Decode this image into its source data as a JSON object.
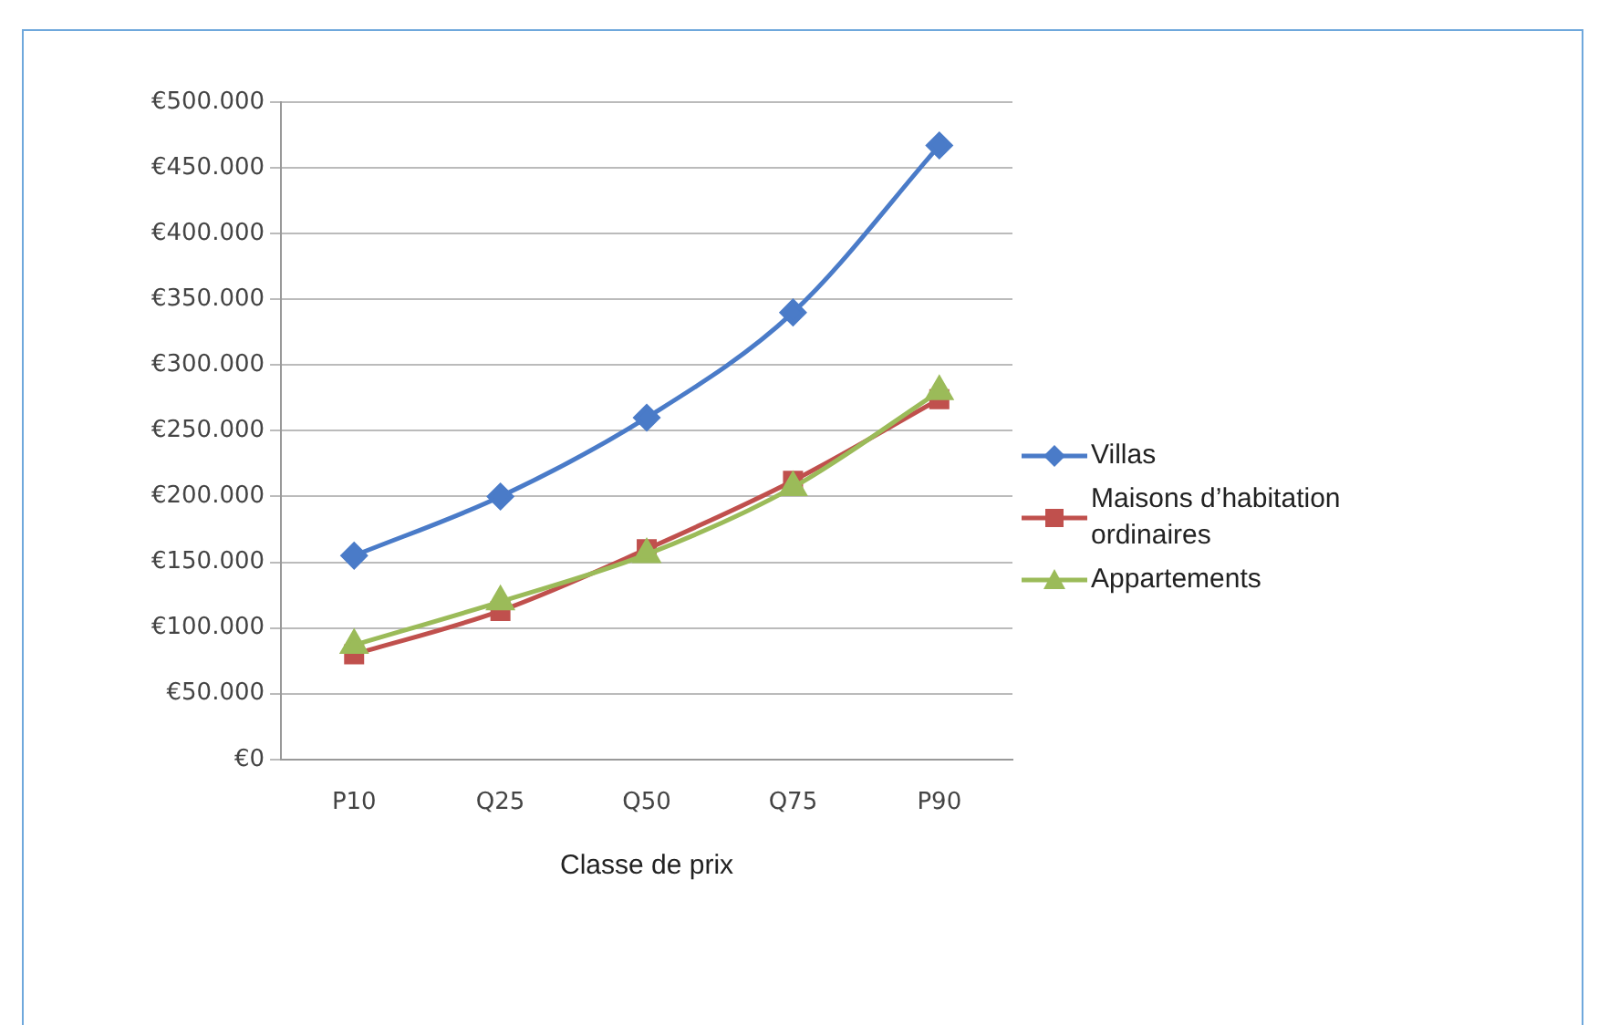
{
  "chart_data": {
    "type": "line",
    "xlabel": "Classe de prix",
    "categories": [
      "P10",
      "Q25",
      "Q50",
      "Q75",
      "P90"
    ],
    "series": [
      {
        "name": "Villas",
        "color": "#4a7bc8",
        "marker": "diamond",
        "values": [
          155000,
          200000,
          260000,
          340000,
          467000
        ]
      },
      {
        "name": "Maisons d’habitation ordinaires",
        "color": "#c0504d",
        "marker": "square",
        "values": [
          80000,
          113000,
          160000,
          212000,
          274000
        ]
      },
      {
        "name": "Appartements",
        "color": "#9bbb59",
        "marker": "triangle",
        "values": [
          87000,
          120000,
          156000,
          207000,
          280000
        ]
      }
    ],
    "ylim": [
      0,
      500000
    ],
    "yticks": [
      {
        "value": 0,
        "label": "€0"
      },
      {
        "value": 50000,
        "label": "€50.000"
      },
      {
        "value": 100000,
        "label": "€100.000"
      },
      {
        "value": 150000,
        "label": "€150.000"
      },
      {
        "value": 200000,
        "label": "€200.000"
      },
      {
        "value": 250000,
        "label": "€250.000"
      },
      {
        "value": 300000,
        "label": "€300.000"
      },
      {
        "value": 350000,
        "label": "€350.000"
      },
      {
        "value": 400000,
        "label": "€400.000"
      },
      {
        "value": 450000,
        "label": "€450.000"
      },
      {
        "value": 500000,
        "label": "€500.000"
      }
    ],
    "grid": "y",
    "legend": "right",
    "line_style": "solid"
  }
}
